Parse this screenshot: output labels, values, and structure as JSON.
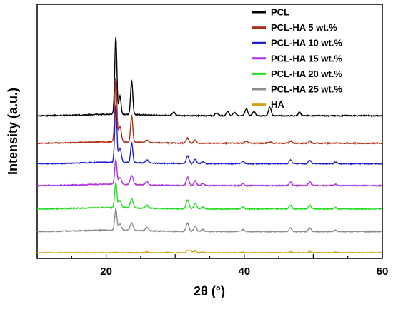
{
  "chart_data": {
    "type": "line",
    "title": "",
    "xlabel": "2θ (°)",
    "ylabel": "Intensity (a.u.)",
    "xlim": [
      10,
      60
    ],
    "x_ticks": [
      20,
      40,
      60
    ],
    "y_ticks": [],
    "legend_position": "top-right",
    "grid": false,
    "series": [
      {
        "name": "HA",
        "color": "#d4a017",
        "baseline": 2,
        "peaks": [
          [
            21.4,
            0.5
          ],
          [
            25.9,
            1.2
          ],
          [
            28.9,
            0.8
          ],
          [
            31.8,
            3.5
          ],
          [
            32.2,
            2.6
          ],
          [
            32.9,
            2.4
          ],
          [
            34.0,
            1.2
          ],
          [
            39.8,
            0.8
          ],
          [
            46.7,
            1.2
          ],
          [
            49.5,
            1.5
          ],
          [
            53.2,
            0.8
          ]
        ]
      },
      {
        "name": "PCL-HA 25 wt.%",
        "color": "#8c8c8c",
        "baseline": 32,
        "peaks": [
          [
            21.4,
            30
          ],
          [
            22.0,
            9
          ],
          [
            23.7,
            11
          ],
          [
            25.9,
            5
          ],
          [
            31.8,
            12
          ],
          [
            32.9,
            8
          ],
          [
            34.0,
            3
          ],
          [
            39.8,
            3
          ],
          [
            46.7,
            5
          ],
          [
            49.5,
            5
          ],
          [
            53.2,
            2
          ]
        ]
      },
      {
        "name": "PCL-HA 20 wt.%",
        "color": "#22dd22",
        "baseline": 64,
        "peaks": [
          [
            21.4,
            35
          ],
          [
            22.0,
            10
          ],
          [
            23.7,
            13
          ],
          [
            25.9,
            5
          ],
          [
            31.8,
            13
          ],
          [
            32.9,
            8
          ],
          [
            34.0,
            3
          ],
          [
            39.8,
            3
          ],
          [
            46.7,
            5
          ],
          [
            49.5,
            5
          ],
          [
            53.2,
            2
          ]
        ]
      },
      {
        "name": "PCL-HA 15 wt.%",
        "color": "#b030e0",
        "baseline": 97,
        "peaks": [
          [
            21.4,
            35
          ],
          [
            22.0,
            10
          ],
          [
            23.7,
            13
          ],
          [
            25.9,
            5
          ],
          [
            31.8,
            12
          ],
          [
            32.9,
            7
          ],
          [
            34.0,
            3
          ],
          [
            39.8,
            3
          ],
          [
            46.7,
            5
          ],
          [
            49.5,
            5
          ],
          [
            53.2,
            2
          ]
        ]
      },
      {
        "name": "PCL-HA 10 wt.%",
        "color": "#1f1fd0",
        "baseline": 128,
        "peaks": [
          [
            21.4,
            81
          ],
          [
            22.0,
            20
          ],
          [
            23.7,
            28
          ],
          [
            25.9,
            5
          ],
          [
            31.8,
            11
          ],
          [
            32.9,
            6
          ],
          [
            34.0,
            3
          ],
          [
            39.8,
            3
          ],
          [
            46.7,
            5
          ],
          [
            49.5,
            5
          ],
          [
            53.2,
            2
          ]
        ]
      },
      {
        "name": "PCL-HA 5 wt.%",
        "color": "#b03018",
        "baseline": 157,
        "peaks": [
          [
            21.4,
            90
          ],
          [
            22.0,
            22
          ],
          [
            23.7,
            38
          ],
          [
            25.9,
            4
          ],
          [
            31.8,
            7
          ],
          [
            32.9,
            4
          ],
          [
            40.3,
            3
          ],
          [
            43.7,
            2
          ],
          [
            46.7,
            3
          ],
          [
            49.5,
            3
          ]
        ]
      },
      {
        "name": "PCL",
        "color": "#000000",
        "baseline": 196,
        "peaks": [
          [
            21.4,
            110
          ],
          [
            22.0,
            26
          ],
          [
            23.7,
            48
          ],
          [
            29.8,
            5
          ],
          [
            36.0,
            4
          ],
          [
            37.6,
            6
          ],
          [
            38.6,
            5
          ],
          [
            40.3,
            10
          ],
          [
            41.4,
            6
          ],
          [
            43.7,
            12
          ],
          [
            48.0,
            5
          ]
        ]
      }
    ]
  }
}
